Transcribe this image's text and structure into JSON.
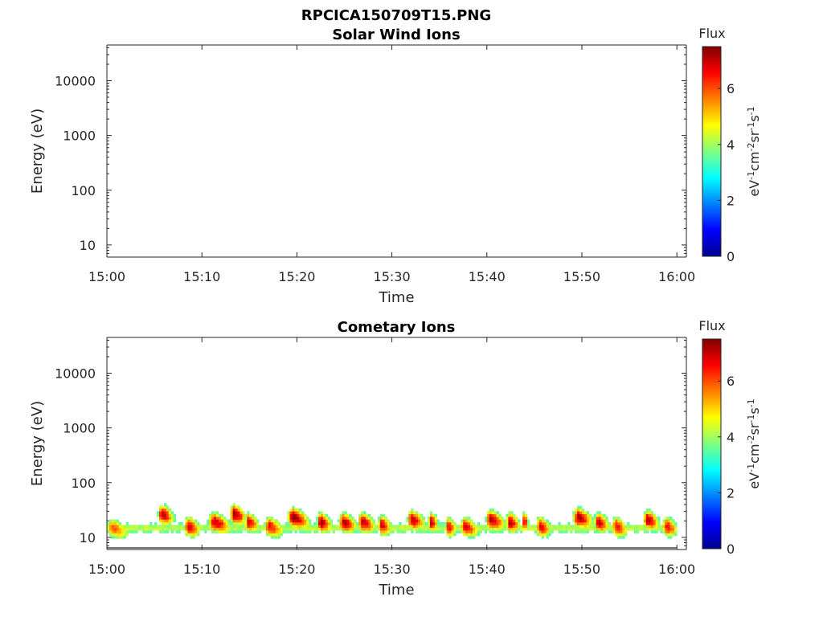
{
  "figure_title": "RPCICA150709T15.PNG",
  "chart_data": [
    {
      "type": "heatmap",
      "title": "Solar Wind Ions",
      "xlabel": "Time",
      "ylabel": "Energy (eV)",
      "x_ticks": [
        "15:00",
        "15:10",
        "15:20",
        "15:30",
        "15:40",
        "15:50",
        "16:00"
      ],
      "xlim": [
        "15:00",
        "16:01"
      ],
      "y_ticks": [
        "10",
        "100",
        "1000",
        "10000"
      ],
      "ylim": [
        6,
        45000
      ],
      "yscale": "log",
      "colorbar": {
        "title": "Flux",
        "label": "eV-1cm-2sr-1s-1",
        "ticks": [
          "0",
          "2",
          "4",
          "6"
        ],
        "range": [
          0,
          7.5
        ],
        "colormap": "jet"
      },
      "bursts": []
    },
    {
      "type": "heatmap",
      "title": "Cometary Ions",
      "xlabel": "Time",
      "ylabel": "Energy (eV)",
      "x_ticks": [
        "15:00",
        "15:10",
        "15:20",
        "15:30",
        "15:40",
        "15:50",
        "16:00"
      ],
      "xlim": [
        "15:00",
        "16:01"
      ],
      "y_ticks": [
        "10",
        "100",
        "1000",
        "10000"
      ],
      "ylim": [
        6,
        45000
      ],
      "yscale": "log",
      "colorbar": {
        "title": "Flux",
        "label": "eV-1cm-2sr-1s-1",
        "ticks": [
          "0",
          "2",
          "4",
          "6"
        ],
        "range": [
          0,
          7.5
        ],
        "colormap": "jet"
      },
      "data_extent": [
        "15:00",
        "16:00"
      ],
      "bursts": [
        {
          "t": "15:00.5",
          "w": 2.4,
          "e": 14,
          "s": 6.0,
          "top": 28
        },
        {
          "t": "15:05.7",
          "w": 1.6,
          "e": 25,
          "s": 7.0,
          "top": 80
        },
        {
          "t": "15:08.5",
          "w": 1.6,
          "e": 15,
          "s": 6.8,
          "top": 35
        },
        {
          "t": "15:11.2",
          "w": 2.3,
          "e": 18,
          "s": 7.0,
          "top": 40
        },
        {
          "t": "15:13.3",
          "w": 1.6,
          "e": 25,
          "s": 7.3,
          "top": 80
        },
        {
          "t": "15:14.8",
          "w": 1.4,
          "e": 18,
          "s": 6.8,
          "top": 70
        },
        {
          "t": "15:17.0",
          "w": 2.0,
          "e": 15,
          "s": 6.6,
          "top": 35
        },
        {
          "t": "15:19.5",
          "w": 2.2,
          "e": 22,
          "s": 7.3,
          "top": 60
        },
        {
          "t": "15:22.4",
          "w": 1.5,
          "e": 18,
          "s": 7.1,
          "top": 60
        },
        {
          "t": "15:24.8",
          "w": 1.8,
          "e": 18,
          "s": 7.0,
          "top": 55
        },
        {
          "t": "15:26.8",
          "w": 1.8,
          "e": 18,
          "s": 7.0,
          "top": 55
        },
        {
          "t": "15:28.8",
          "w": 1.4,
          "e": 16,
          "s": 6.8,
          "top": 40
        },
        {
          "t": "15:32.0",
          "w": 1.8,
          "e": 20,
          "s": 7.0,
          "top": 80
        },
        {
          "t": "15:34.0",
          "w": 1.0,
          "e": 18,
          "s": 6.9,
          "top": 50
        },
        {
          "t": "15:35.8",
          "w": 1.2,
          "e": 15,
          "s": 6.6,
          "top": 35
        },
        {
          "t": "15:37.6",
          "w": 1.8,
          "e": 15,
          "s": 6.8,
          "top": 40
        },
        {
          "t": "15:40.3",
          "w": 2.0,
          "e": 20,
          "s": 7.1,
          "top": 60
        },
        {
          "t": "15:42.3",
          "w": 1.4,
          "e": 18,
          "s": 7.0,
          "top": 55
        },
        {
          "t": "15:43.8",
          "w": 0.6,
          "e": 18,
          "s": 6.9,
          "top": 75
        },
        {
          "t": "15:45.5",
          "w": 1.5,
          "e": 15,
          "s": 6.8,
          "top": 40
        },
        {
          "t": "15:49.5",
          "w": 2.0,
          "e": 22,
          "s": 7.2,
          "top": 80
        },
        {
          "t": "15:51.6",
          "w": 1.5,
          "e": 18,
          "s": 6.9,
          "top": 60
        },
        {
          "t": "15:53.5",
          "w": 1.6,
          "e": 15,
          "s": 6.6,
          "top": 40
        },
        {
          "t": "15:56.8",
          "w": 1.6,
          "e": 20,
          "s": 7.0,
          "top": 75
        },
        {
          "t": "15:58.8",
          "w": 1.6,
          "e": 15,
          "s": 6.5,
          "top": 30
        }
      ]
    }
  ]
}
